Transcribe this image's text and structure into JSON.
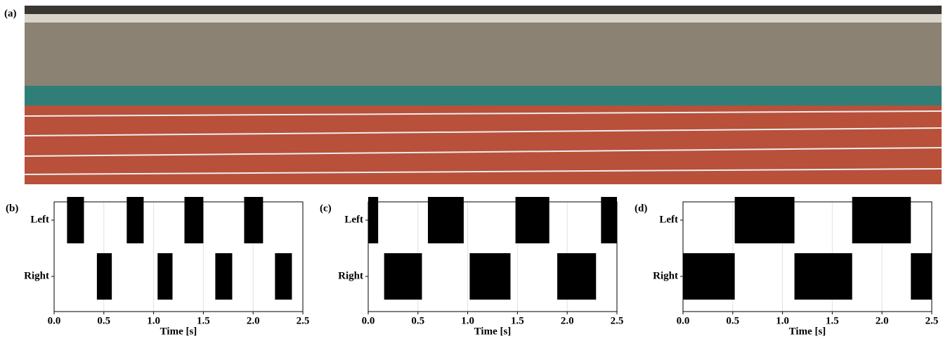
{
  "photo_label": "(a)",
  "chart_data": [
    {
      "type": "gantt",
      "label": "(b)",
      "xlabel": "Time [s]",
      "color": "#000000",
      "grid": true,
      "xlim": [
        0,
        2.5
      ],
      "xticks": [
        {
          "value": 0,
          "label": "0.0"
        },
        {
          "value": 0.5,
          "label": "0.5"
        },
        {
          "value": 1,
          "label": "1.0"
        },
        {
          "value": 1.5,
          "label": "1.5"
        },
        {
          "value": 2,
          "label": "2.0"
        },
        {
          "value": 2.5,
          "label": "2.5"
        }
      ],
      "categories": [
        "Left",
        "Right"
      ],
      "intervals": [
        [
          [
            0.13,
            0.3
          ],
          [
            0.73,
            0.9
          ],
          [
            1.31,
            1.5
          ],
          [
            1.91,
            2.1
          ]
        ],
        [
          [
            0.43,
            0.58
          ],
          [
            1.04,
            1.19
          ],
          [
            1.62,
            1.79
          ],
          [
            2.22,
            2.39
          ]
        ]
      ]
    },
    {
      "type": "gantt",
      "label": "(c)",
      "xlabel": "Time [s]",
      "color": "#000000",
      "grid": true,
      "xlim": [
        0,
        2.5
      ],
      "xticks": [
        {
          "value": 0,
          "label": "0.0"
        },
        {
          "value": 0.5,
          "label": "0.5"
        },
        {
          "value": 1,
          "label": "1.0"
        },
        {
          "value": 1.5,
          "label": "1.5"
        },
        {
          "value": 2,
          "label": "2.0"
        },
        {
          "value": 2.5,
          "label": "2.5"
        }
      ],
      "categories": [
        "Left",
        "Right"
      ],
      "intervals": [
        [
          [
            0,
            0.1
          ],
          [
            0.6,
            0.96
          ],
          [
            1.48,
            1.82
          ],
          [
            2.34,
            2.5
          ]
        ],
        [
          [
            0.16,
            0.54
          ],
          [
            1.02,
            1.43
          ],
          [
            1.9,
            2.29
          ]
        ]
      ]
    },
    {
      "type": "gantt",
      "label": "(d)",
      "xlabel": "Time [s]",
      "color": "#000000",
      "grid": true,
      "xlim": [
        0,
        2.5
      ],
      "xticks": [
        {
          "value": 0,
          "label": "0.0"
        },
        {
          "value": 0.5,
          "label": "0.5"
        },
        {
          "value": 1,
          "label": "1.0"
        },
        {
          "value": 1.5,
          "label": "1.5"
        },
        {
          "value": 2,
          "label": "2.0"
        },
        {
          "value": 2.5,
          "label": "2.5"
        }
      ],
      "categories": [
        "Left",
        "Right"
      ],
      "intervals": [
        [
          [
            0.52,
            1.12
          ],
          [
            1.7,
            2.29
          ]
        ],
        [
          [
            0,
            0.52
          ],
          [
            1.12,
            1.7
          ],
          [
            2.29,
            2.5
          ]
        ]
      ]
    }
  ]
}
